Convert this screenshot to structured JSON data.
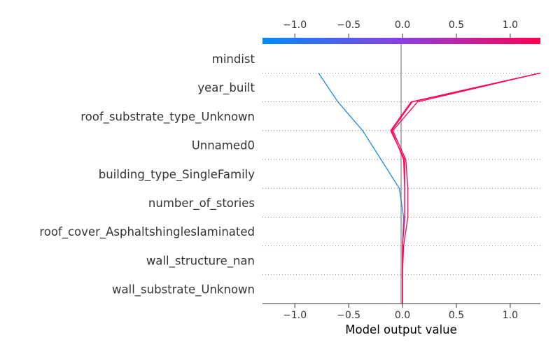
{
  "chart_data": {
    "type": "line",
    "title": "",
    "xlabel": "Model output value",
    "ylabel": "",
    "xlim": [
      -1.3,
      1.28
    ],
    "x_ticks": [
      "−1.0",
      "−0.5",
      "0.0",
      "0.5",
      "1.0"
    ],
    "x_tick_values": [
      -1.0,
      -0.5,
      0.0,
      0.5,
      1.0
    ],
    "base_value": 0.0,
    "features": [
      "mindist",
      "year_built",
      "roof_substrate_type_Unknown",
      "Unnamed0",
      "building_type_SingleFamily",
      "number_of_stories",
      "roof_cover_Asphaltshingleslaminated",
      "wall_structure_nan",
      "wall_substrate_Unknown"
    ],
    "grid": "dotted horizontal separators",
    "colorbar": {
      "from": "#008bfb",
      "to": "#ff0052",
      "position": "top"
    },
    "series": [
      {
        "color": "#1e88e5",
        "values": [
          0.0,
          0.0,
          0.0,
          0.01,
          -0.03,
          -0.2,
          -0.37,
          -0.6,
          -0.78
        ]
      },
      {
        "color": "#ff0052",
        "values": [
          0.0,
          0.0,
          0.01,
          0.05,
          0.05,
          0.03,
          -0.09,
          0.14,
          1.28
        ]
      },
      {
        "color": "#ff0052",
        "values": [
          0.0,
          0.0,
          0.0,
          0.02,
          0.02,
          0.01,
          -0.1,
          0.09,
          1.28
        ]
      },
      {
        "color": "#ff0052",
        "values": [
          0.0,
          0.0,
          0.0,
          0.02,
          0.02,
          0.02,
          -0.11,
          0.08,
          1.28
        ]
      }
    ]
  }
}
